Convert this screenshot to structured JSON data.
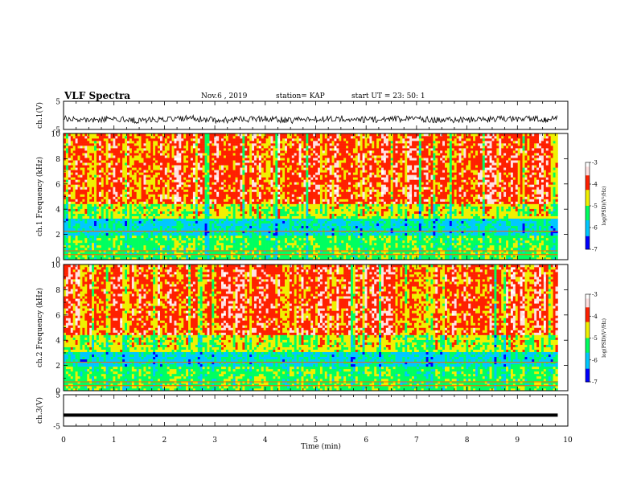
{
  "header": {
    "title": "VLF Spectra",
    "date": "Nov.6  , 2019",
    "station": "station= KAP",
    "start": "start  UT  =   23: 50: 1"
  },
  "colors": {
    "colormap": [
      "#000000",
      "#0000ff",
      "#00c8ff",
      "#00ff60",
      "#f0f000",
      "#ff2000",
      "#ffe0e0",
      "#ffffff"
    ]
  },
  "chart_data": [
    {
      "type": "line",
      "name": "ch1-voltage",
      "ylabel": "ch.1(V)",
      "ylim": [
        -5,
        5
      ],
      "yticks": [
        "5",
        "-5"
      ],
      "xlim": [
        0,
        10
      ],
      "description_values": "noisy waveform around -1.5 V, amplitude ~±1 V",
      "x": [
        0,
        0.5,
        1,
        1.5,
        2,
        2.5,
        3,
        3.5,
        4,
        4.5,
        5,
        5.5,
        6,
        6.5,
        7,
        7.5,
        8,
        8.5,
        9,
        9.5,
        9.8
      ],
      "y": [
        -1.0,
        -1.5,
        -1.2,
        -1.8,
        -1.4,
        -1.0,
        -1.7,
        -1.5,
        -1.2,
        -1.8,
        -1.3,
        -1.1,
        -1.6,
        -1.4,
        -1.2,
        -1.7,
        -1.5,
        -1.3,
        -1.2,
        -1.4,
        -1.1
      ]
    },
    {
      "type": "heatmap",
      "name": "ch1-spectrogram",
      "ylabel": "ch.1  Frequency  (kHz)",
      "ylim": [
        0,
        10
      ],
      "yticks": [
        "0",
        "2",
        "4",
        "6",
        "8",
        "10"
      ],
      "xlim": [
        0,
        10
      ],
      "colorbar": {
        "label": "log(PSD)(V²/Hz)",
        "range": [
          -7,
          -3
        ],
        "ticks": [
          "-3",
          "-4",
          "-5",
          "-6",
          "-7"
        ]
      },
      "bands": [
        {
          "f_range": [
            0,
            2
          ],
          "level": -5.2
        },
        {
          "f_range": [
            2,
            3.2
          ],
          "level": -5.8
        },
        {
          "f_range": [
            3.2,
            4.5
          ],
          "level": -4.8
        },
        {
          "f_range": [
            4.5,
            10
          ],
          "level": -4.0
        }
      ],
      "seed": 11
    },
    {
      "type": "heatmap",
      "name": "ch2-spectrogram",
      "ylabel": "ch.2  Frequency  (kHz)",
      "ylim": [
        0,
        10
      ],
      "yticks": [
        "0",
        "2",
        "4",
        "6",
        "8",
        "10"
      ],
      "xlim": [
        0,
        10
      ],
      "colorbar": {
        "label": "log(PSD)(V²/Hz)",
        "range": [
          -7,
          -3
        ],
        "ticks": [
          "-3",
          "-4",
          "-5",
          "-6",
          "-7"
        ]
      },
      "bands": [
        {
          "f_range": [
            0,
            2
          ],
          "level": -5.2
        },
        {
          "f_range": [
            2,
            3.0
          ],
          "level": -5.8
        },
        {
          "f_range": [
            3.0,
            4.5
          ],
          "level": -4.8
        },
        {
          "f_range": [
            4.5,
            10
          ],
          "level": -4.0
        }
      ],
      "seed": 29
    },
    {
      "type": "line",
      "name": "ch3-voltage",
      "ylabel": "ch.3(V)",
      "ylim": [
        -5,
        5
      ],
      "yticks": [
        "5",
        "-5"
      ],
      "xlim": [
        0,
        10
      ],
      "x": [
        0,
        9.8
      ],
      "y": [
        -1.5,
        -1.5
      ]
    }
  ],
  "xaxis": {
    "label": "Time  (min)",
    "ticks": [
      "0",
      "1",
      "2",
      "3",
      "4",
      "5",
      "6",
      "7",
      "8",
      "9",
      "10"
    ]
  }
}
